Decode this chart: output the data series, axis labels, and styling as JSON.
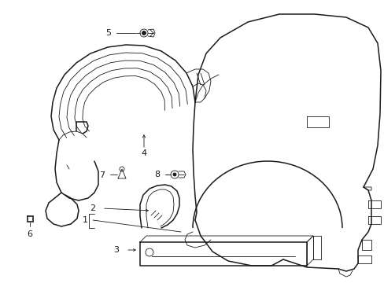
{
  "background_color": "#ffffff",
  "line_color": "#1a1a1a",
  "figsize": [
    4.89,
    3.6
  ],
  "dpi": 100,
  "lw_main": 1.1,
  "lw_thin": 0.6,
  "lw_label": 0.7
}
